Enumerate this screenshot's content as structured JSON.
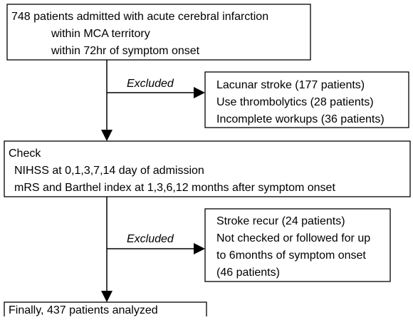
{
  "nodes": [
    {
      "lines": [
        "748 patients admitted with acute cerebral infarction",
        "within MCA territory",
        "within 72hr of symptom onset"
      ]
    },
    {
      "lines": [
        "Lacunar stroke (177 patients)",
        "Use thrombolytics (28 patients)",
        "Incomplete workups (36 patients)"
      ]
    },
    {
      "lines": [
        "Check",
        "NIHSS at 0,1,3,7,14 day of admission",
        "mRS and Barthel index at 1,3,6,12 months after symptom onset"
      ]
    },
    {
      "lines": [
        "Stroke recur (24 patients)",
        "Not checked or followed for up",
        "to 6months of symptom onset",
        "(46 patients)"
      ]
    },
    {
      "lines": [
        "Finally, 437 patients analyzed"
      ]
    }
  ],
  "edge_labels": [
    "Excluded",
    "Excluded"
  ]
}
